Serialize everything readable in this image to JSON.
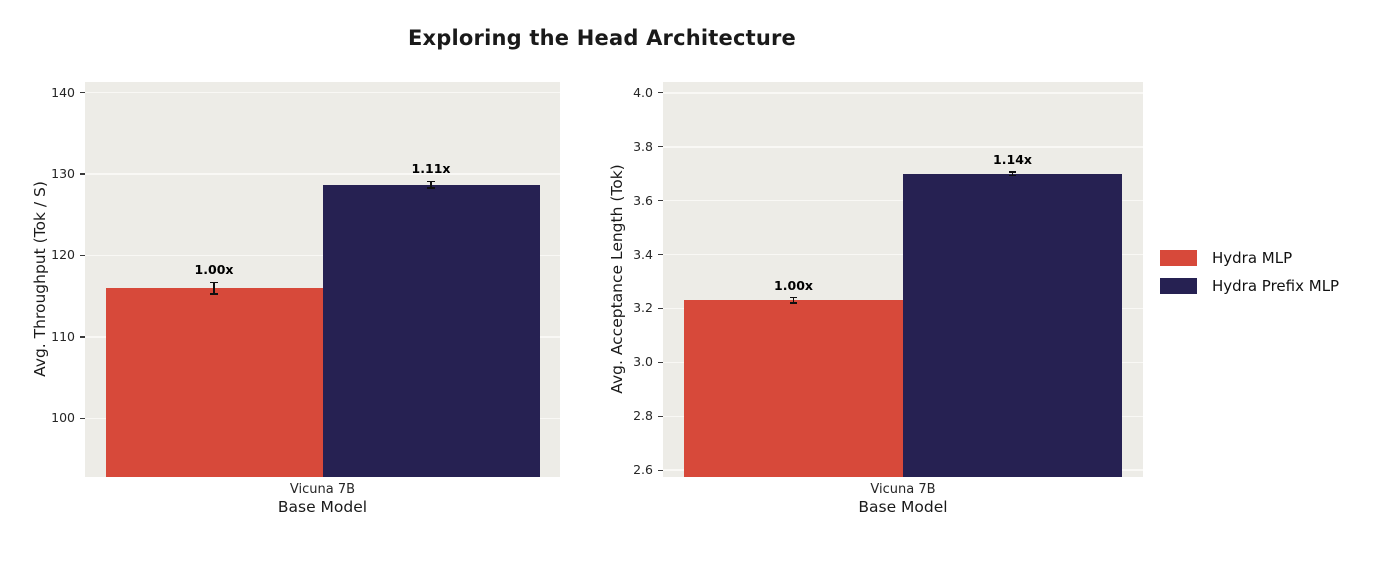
{
  "title": "Exploring the Head Architecture",
  "colors": {
    "hydra_mlp": "#d7493a",
    "hydra_prefix_mlp": "#262152",
    "plot_background": "#edece7",
    "gridline": "#f9f8f5",
    "figure_background": "#ffffff",
    "errorbar": "#101010"
  },
  "legend": {
    "position": "right",
    "entries": [
      {
        "label": "Hydra MLP",
        "color": "#d7493a"
      },
      {
        "label": "Hydra Prefix MLP",
        "color": "#262152"
      }
    ]
  },
  "chart_data": [
    {
      "type": "bar",
      "ylabel": "Avg. Throughput (Tok / S)",
      "xlabel": "Base Model",
      "categories": [
        "Vicuna 7B"
      ],
      "series": [
        {
          "name": "Hydra MLP",
          "color": "#d7493a",
          "values": [
            116.0
          ],
          "value_labels": [
            "1.00x"
          ],
          "err": [
            0.7
          ]
        },
        {
          "name": "Hydra Prefix MLP",
          "color": "#262152",
          "values": [
            128.7
          ],
          "value_labels": [
            "1.11x"
          ],
          "err": [
            0.4
          ]
        }
      ],
      "yticks": [
        100,
        110,
        120,
        130,
        140
      ],
      "ytick_labels": [
        "100",
        "110",
        "120",
        "130",
        "140"
      ],
      "ylim": [
        92.8,
        141.3
      ],
      "grid": true
    },
    {
      "type": "bar",
      "ylabel": "Avg. Acceptance Length (Tok)",
      "xlabel": "Base Model",
      "categories": [
        "Vicuna 7B"
      ],
      "series": [
        {
          "name": "Hydra MLP",
          "color": "#d7493a",
          "values": [
            3.23
          ],
          "value_labels": [
            "1.00x"
          ],
          "err": [
            0.01
          ]
        },
        {
          "name": "Hydra Prefix MLP",
          "color": "#262152",
          "values": [
            3.7
          ],
          "value_labels": [
            "1.14x"
          ],
          "err": [
            0.007
          ]
        }
      ],
      "yticks": [
        2.6,
        2.8,
        3.0,
        3.2,
        3.4,
        3.6,
        3.8,
        4.0
      ],
      "ytick_labels": [
        "2.6",
        "2.8",
        "3.0",
        "3.2",
        "3.4",
        "3.6",
        "3.8",
        "4.0"
      ],
      "ylim": [
        2.575,
        4.04
      ],
      "grid": true
    }
  ]
}
